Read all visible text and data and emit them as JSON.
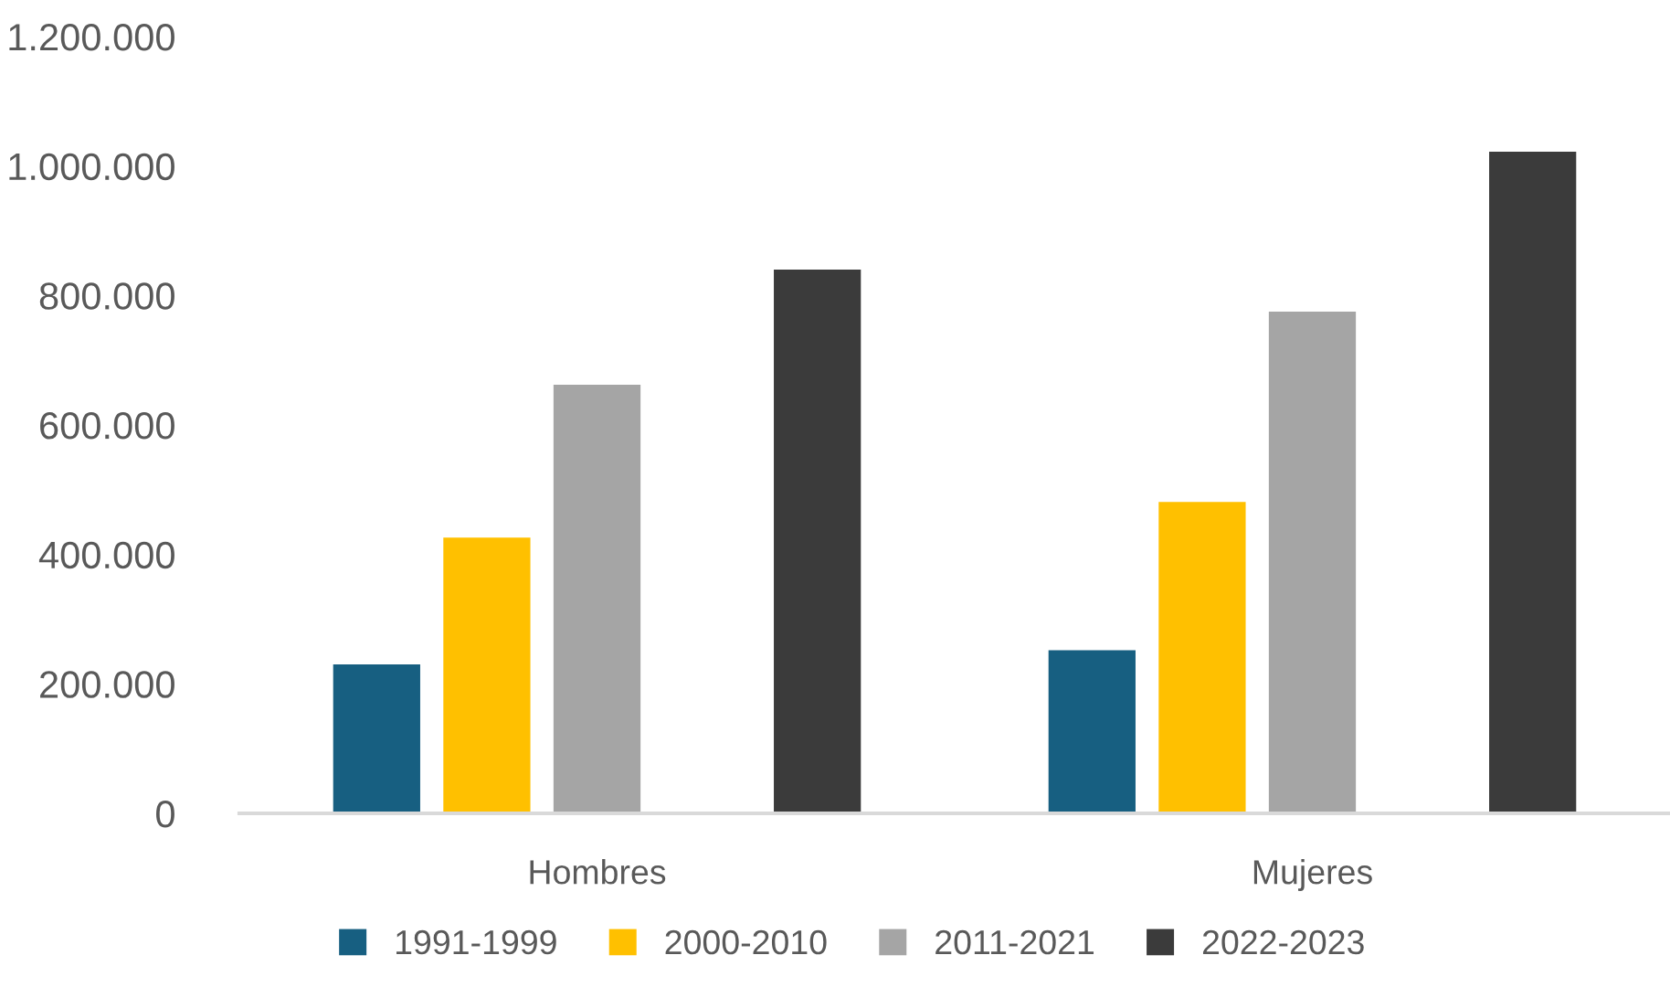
{
  "chart_data": {
    "type": "bar",
    "categories": [
      "Hombres",
      "Mujeres"
    ],
    "series": [
      {
        "name": "1991-1999",
        "color": "#175f81",
        "values": [
          230000,
          252000
        ]
      },
      {
        "name": "2000-2010",
        "color": "#ffc000",
        "values": [
          426000,
          481000
        ]
      },
      {
        "name": "2011-2021",
        "color": "#a5a5a5",
        "values": [
          662000,
          775000
        ]
      },
      {
        "values": [
          null,
          null
        ]
      },
      {
        "name": "2022-2023",
        "color": "#3b3b3b",
        "values": [
          840000,
          1022000
        ]
      }
    ],
    "ylim": [
      0,
      1200000
    ],
    "yticks": [
      {
        "value": 0,
        "label": "0"
      },
      {
        "value": 200000,
        "label": "200.000"
      },
      {
        "value": 400000,
        "label": "400.000"
      },
      {
        "value": 600000,
        "label": "600.000"
      },
      {
        "value": 800000,
        "label": "800.000"
      },
      {
        "value": 1000000,
        "label": "1.000.000"
      },
      {
        "value": 1200000,
        "label": "1.200.000"
      }
    ],
    "grid": false,
    "legend": "bottom"
  }
}
